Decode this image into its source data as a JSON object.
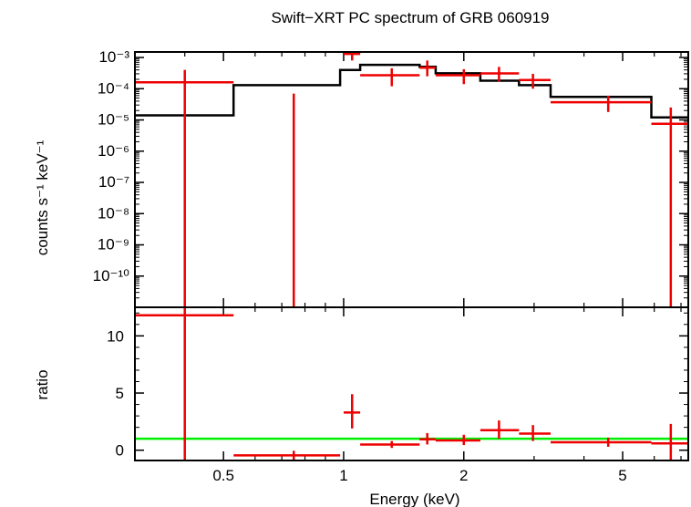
{
  "chart_data": {
    "type": "spectrum",
    "title": "Swift−XRT PC spectrum of GRB 060919",
    "xlabel": "Energy (keV)",
    "x_scale": "log",
    "xlim": [
      0.3,
      7.3
    ],
    "x_ticks": [
      0.5,
      1,
      2,
      5
    ],
    "x_tick_labels": [
      "0.5",
      "1",
      "2",
      "5"
    ],
    "panels": [
      {
        "name": "spectrum",
        "ylabel": "counts s⁻¹ keV⁻¹",
        "y_scale": "log",
        "ylim": [
          1e-11,
          0.0015
        ],
        "y_ticks": [
          {
            "exp": -3,
            "label": "10⁻³"
          },
          {
            "exp": -4,
            "label": "10⁻⁴"
          },
          {
            "exp": -5,
            "label": "10⁻⁵"
          },
          {
            "exp": -6,
            "label": "10⁻⁶"
          },
          {
            "exp": -7,
            "label": "10⁻⁷"
          },
          {
            "exp": -8,
            "label": "10⁻⁸"
          },
          {
            "exp": -9,
            "label": "10⁻⁹"
          },
          {
            "exp": -10,
            "label": "10⁻¹⁰"
          }
        ],
        "data_color": "#ee0000",
        "model_color": "#000000",
        "data_points": [
          {
            "x": 0.4,
            "xlo": 0.3,
            "xhi": 0.53,
            "y": 0.00016,
            "ylo": 1e-11,
            "yhi": 0.0004
          },
          {
            "x": 0.75,
            "xlo": 0.75,
            "xhi": 0.75,
            "y": 1e-11,
            "ylo": 1e-11,
            "yhi": 7e-05
          },
          {
            "x": 1.05,
            "xlo": 1.0,
            "xhi": 1.1,
            "y": 0.0013,
            "ylo": 0.0008,
            "yhi": 0.0015
          },
          {
            "x": 1.32,
            "xlo": 1.1,
            "xhi": 1.55,
            "y": 0.00027,
            "ylo": 0.00012,
            "yhi": 0.00045
          },
          {
            "x": 1.62,
            "xlo": 1.55,
            "xhi": 1.7,
            "y": 0.00047,
            "ylo": 0.00025,
            "yhi": 0.0008
          },
          {
            "x": 2.0,
            "xlo": 1.7,
            "xhi": 2.2,
            "y": 0.00027,
            "ylo": 0.00014,
            "yhi": 0.00042
          },
          {
            "x": 2.45,
            "xlo": 2.2,
            "xhi": 2.75,
            "y": 0.00031,
            "ylo": 0.00017,
            "yhi": 0.0005
          },
          {
            "x": 2.98,
            "xlo": 2.75,
            "xhi": 3.3,
            "y": 0.00019,
            "ylo": 0.0001,
            "yhi": 0.0003
          },
          {
            "x": 4.6,
            "xlo": 3.3,
            "xhi": 5.9,
            "y": 3.7e-05,
            "ylo": 1.8e-05,
            "yhi": 6e-05
          },
          {
            "x": 6.6,
            "xlo": 5.9,
            "xhi": 7.3,
            "y": 7.5e-06,
            "ylo": 1e-11,
            "yhi": 2.5e-05
          }
        ],
        "model_steps": [
          {
            "x0": 0.3,
            "x1": 0.53,
            "y": 1.4e-05
          },
          {
            "x0": 0.53,
            "x1": 0.98,
            "y": 0.00013
          },
          {
            "x0": 0.98,
            "x1": 1.1,
            "y": 0.0004
          },
          {
            "x0": 1.1,
            "x1": 1.55,
            "y": 0.00058
          },
          {
            "x0": 1.55,
            "x1": 1.7,
            "y": 0.0005
          },
          {
            "x0": 1.7,
            "x1": 2.2,
            "y": 0.00031
          },
          {
            "x0": 2.2,
            "x1": 2.75,
            "y": 0.00018
          },
          {
            "x0": 2.75,
            "x1": 3.3,
            "y": 0.00013
          },
          {
            "x0": 3.3,
            "x1": 5.9,
            "y": 5.5e-05
          },
          {
            "x0": 5.9,
            "x1": 7.3,
            "y": 1.2e-05
          }
        ]
      },
      {
        "name": "ratio",
        "ylabel": "ratio",
        "y_scale": "linear",
        "ylim": [
          -0.9,
          12.5
        ],
        "y_ticks": [
          0,
          5,
          10
        ],
        "y_tick_labels": [
          "0",
          "5",
          "10"
        ],
        "reference_line": 1.0,
        "reference_color": "#00ee00",
        "data_color": "#ee0000",
        "data_points": [
          {
            "x": 0.4,
            "xlo": 0.3,
            "xhi": 0.53,
            "y": 11.8,
            "ylo": -0.9,
            "yhi": 12.5
          },
          {
            "x": 0.75,
            "xlo": 0.53,
            "xhi": 0.98,
            "y": -0.45,
            "ylo": -0.9,
            "yhi": -0.05
          },
          {
            "x": 1.05,
            "xlo": 1.0,
            "xhi": 1.1,
            "y": 3.3,
            "ylo": 1.9,
            "yhi": 4.9
          },
          {
            "x": 1.32,
            "xlo": 1.1,
            "xhi": 1.55,
            "y": 0.5,
            "ylo": 0.2,
            "yhi": 0.8
          },
          {
            "x": 1.62,
            "xlo": 1.55,
            "xhi": 1.7,
            "y": 0.95,
            "ylo": 0.5,
            "yhi": 1.5
          },
          {
            "x": 2.0,
            "xlo": 1.7,
            "xhi": 2.2,
            "y": 0.85,
            "ylo": 0.45,
            "yhi": 1.35
          },
          {
            "x": 2.45,
            "xlo": 2.2,
            "xhi": 2.75,
            "y": 1.75,
            "ylo": 1.0,
            "yhi": 2.6
          },
          {
            "x": 2.98,
            "xlo": 2.75,
            "xhi": 3.3,
            "y": 1.45,
            "ylo": 0.8,
            "yhi": 2.2
          },
          {
            "x": 4.6,
            "xlo": 3.3,
            "xhi": 5.9,
            "y": 0.7,
            "ylo": 0.3,
            "yhi": 1.1
          },
          {
            "x": 6.6,
            "xlo": 5.9,
            "xhi": 7.3,
            "y": 0.6,
            "ylo": -0.9,
            "yhi": 2.3
          }
        ]
      }
    ]
  }
}
